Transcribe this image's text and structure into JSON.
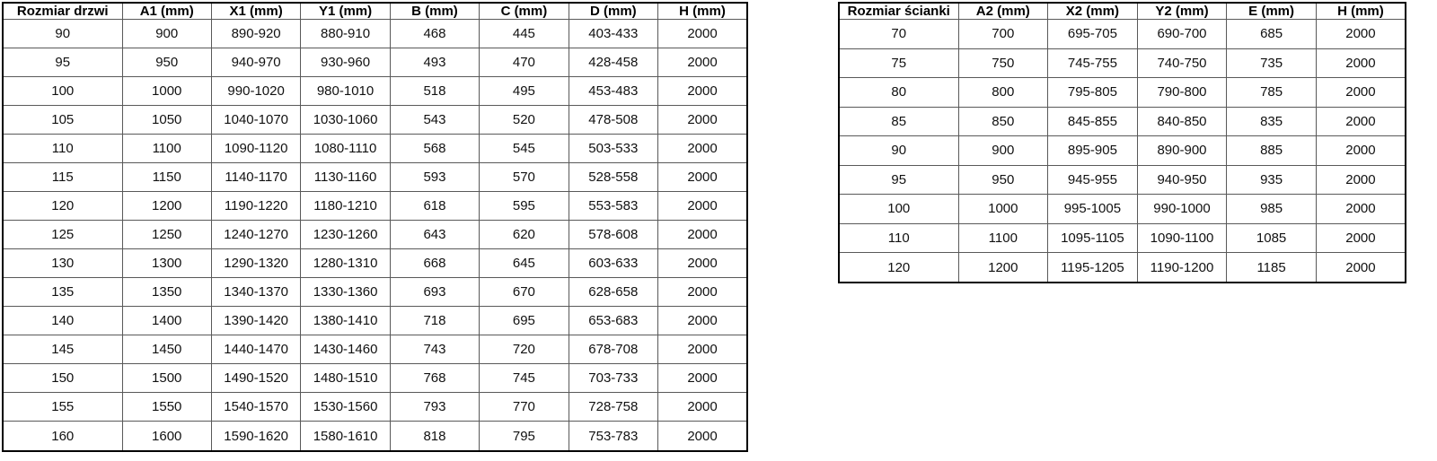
{
  "page": {
    "description_label": "shower door and wall panel dimension tables"
  },
  "colors": {
    "background": "#ffffff",
    "border_outer": "#000000",
    "border_inner": "#595959",
    "text": "#111111"
  },
  "tables": [
    {
      "name": "door-sizes-table",
      "headers": [
        "Rozmiar drzwi",
        "A1 (mm)",
        "X1 (mm)",
        "Y1 (mm)",
        "B (mm)",
        "C (mm)",
        "D (mm)",
        "H (mm)"
      ],
      "rows": [
        [
          "90",
          "900",
          "890-920",
          "880-910",
          "468",
          "445",
          "403-433",
          "2000"
        ],
        [
          "95",
          "950",
          "940-970",
          "930-960",
          "493",
          "470",
          "428-458",
          "2000"
        ],
        [
          "100",
          "1000",
          "990-1020",
          "980-1010",
          "518",
          "495",
          "453-483",
          "2000"
        ],
        [
          "105",
          "1050",
          "1040-1070",
          "1030-1060",
          "543",
          "520",
          "478-508",
          "2000"
        ],
        [
          "110",
          "1100",
          "1090-1120",
          "1080-1110",
          "568",
          "545",
          "503-533",
          "2000"
        ],
        [
          "115",
          "1150",
          "1140-1170",
          "1130-1160",
          "593",
          "570",
          "528-558",
          "2000"
        ],
        [
          "120",
          "1200",
          "1190-1220",
          "1180-1210",
          "618",
          "595",
          "553-583",
          "2000"
        ],
        [
          "125",
          "1250",
          "1240-1270",
          "1230-1260",
          "643",
          "620",
          "578-608",
          "2000"
        ],
        [
          "130",
          "1300",
          "1290-1320",
          "1280-1310",
          "668",
          "645",
          "603-633",
          "2000"
        ],
        [
          "135",
          "1350",
          "1340-1370",
          "1330-1360",
          "693",
          "670",
          "628-658",
          "2000"
        ],
        [
          "140",
          "1400",
          "1390-1420",
          "1380-1410",
          "718",
          "695",
          "653-683",
          "2000"
        ],
        [
          "145",
          "1450",
          "1440-1470",
          "1430-1460",
          "743",
          "720",
          "678-708",
          "2000"
        ],
        [
          "150",
          "1500",
          "1490-1520",
          "1480-1510",
          "768",
          "745",
          "703-733",
          "2000"
        ],
        [
          "155",
          "1550",
          "1540-1570",
          "1530-1560",
          "793",
          "770",
          "728-758",
          "2000"
        ],
        [
          "160",
          "1600",
          "1590-1620",
          "1580-1610",
          "818",
          "795",
          "753-783",
          "2000"
        ]
      ]
    },
    {
      "name": "wall-panel-sizes-table",
      "headers": [
        "Rozmiar ścianki",
        "A2 (mm)",
        "X2 (mm)",
        "Y2 (mm)",
        "E (mm)",
        "H (mm)"
      ],
      "rows": [
        [
          "70",
          "700",
          "695-705",
          "690-700",
          "685",
          "2000"
        ],
        [
          "75",
          "750",
          "745-755",
          "740-750",
          "735",
          "2000"
        ],
        [
          "80",
          "800",
          "795-805",
          "790-800",
          "785",
          "2000"
        ],
        [
          "85",
          "850",
          "845-855",
          "840-850",
          "835",
          "2000"
        ],
        [
          "90",
          "900",
          "895-905",
          "890-900",
          "885",
          "2000"
        ],
        [
          "95",
          "950",
          "945-955",
          "940-950",
          "935",
          "2000"
        ],
        [
          "100",
          "1000",
          "995-1005",
          "990-1000",
          "985",
          "2000"
        ],
        [
          "110",
          "1100",
          "1095-1105",
          "1090-1100",
          "1085",
          "2000"
        ],
        [
          "120",
          "1200",
          "1195-1205",
          "1190-1200",
          "1185",
          "2000"
        ]
      ]
    }
  ]
}
